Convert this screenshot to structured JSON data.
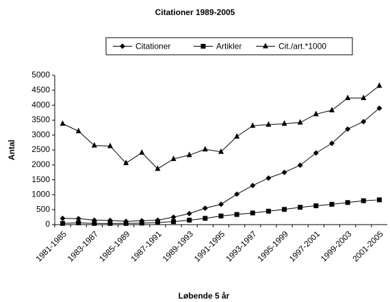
{
  "chart_data": {
    "type": "line",
    "title": "Citationer 1989-2005",
    "x_label": "Løbende 5 år",
    "y_label": "Antal",
    "categories": [
      "1981-1985",
      null,
      "1983-1987",
      null,
      "1985-1989",
      null,
      "1987-1991",
      null,
      "1989-1993",
      null,
      "1991-1995",
      null,
      "1993-1997",
      null,
      "1995-1999",
      null,
      "1997-2001",
      null,
      "1999-2003",
      null,
      "2001-2005"
    ],
    "series": [
      {
        "name": "Citationer",
        "color": "#000000",
        "marker": "diamond",
        "values": [
          210,
          200,
          150,
          140,
          110,
          130,
          150,
          250,
          370,
          550,
          680,
          1020,
          1310,
          1560,
          1750,
          1990,
          2400,
          2720,
          3200,
          3450,
          3900
        ]
      },
      {
        "name": "Artikler",
        "color": "#000000",
        "marker": "square",
        "values": [
          40,
          60,
          40,
          40,
          40,
          50,
          70,
          100,
          150,
          210,
          290,
          340,
          390,
          450,
          510,
          580,
          630,
          680,
          740,
          800,
          830
        ]
      },
      {
        "name": "Cit./art.*1000",
        "color": "#000000",
        "marker": "triangle",
        "values": [
          3380,
          3130,
          2650,
          2630,
          2060,
          2410,
          1870,
          2200,
          2330,
          2520,
          2440,
          2950,
          3310,
          3350,
          3380,
          3420,
          3700,
          3830,
          4240,
          4240,
          4650
        ]
      }
    ],
    "ylim": [
      0,
      5000
    ],
    "yticks": [
      0,
      500,
      1000,
      1500,
      2000,
      2500,
      3000,
      3500,
      4000,
      4500,
      5000
    ],
    "grid": false,
    "legend": "top"
  }
}
